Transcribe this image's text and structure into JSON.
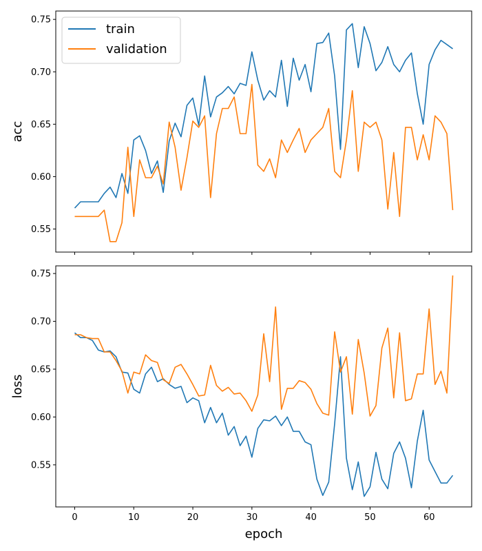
{
  "chart_data": [
    {
      "type": "line",
      "ylabel": "acc",
      "ylim": [
        0.528,
        0.758
      ],
      "yticks": [
        0.55,
        0.6,
        0.65,
        0.7,
        0.75
      ],
      "ytick_labels": [
        "0.55",
        "0.60",
        "0.65",
        "0.70",
        "0.75"
      ],
      "legend": {
        "position": "top-left"
      },
      "series": [
        {
          "name": "train",
          "color": "#1f77b4",
          "values": [
            0.57,
            0.576,
            0.576,
            0.576,
            0.576,
            0.584,
            0.59,
            0.58,
            0.603,
            0.584,
            0.635,
            0.639,
            0.625,
            0.603,
            0.615,
            0.585,
            0.634,
            0.651,
            0.638,
            0.668,
            0.675,
            0.649,
            0.696,
            0.657,
            0.676,
            0.68,
            0.686,
            0.679,
            0.689,
            0.687,
            0.719,
            0.692,
            0.673,
            0.682,
            0.676,
            0.711,
            0.667,
            0.713,
            0.692,
            0.707,
            0.681,
            0.727,
            0.728,
            0.737,
            0.696,
            0.626,
            0.74,
            0.746,
            0.704,
            0.743,
            0.727,
            0.701,
            0.709,
            0.724,
            0.707,
            0.7,
            0.711,
            0.718,
            0.679,
            0.65,
            0.707,
            0.721,
            0.73,
            0.726,
            0.722
          ]
        },
        {
          "name": "validation",
          "color": "#ff7f0e",
          "values": [
            0.562,
            0.562,
            0.562,
            0.562,
            0.562,
            0.568,
            0.538,
            0.538,
            0.556,
            0.628,
            0.562,
            0.616,
            0.599,
            0.599,
            0.61,
            0.593,
            0.652,
            0.628,
            0.587,
            0.618,
            0.653,
            0.647,
            0.658,
            0.58,
            0.641,
            0.665,
            0.665,
            0.676,
            0.641,
            0.641,
            0.688,
            0.611,
            0.605,
            0.617,
            0.599,
            0.635,
            0.623,
            0.635,
            0.646,
            0.623,
            0.635,
            0.641,
            0.647,
            0.665,
            0.605,
            0.599,
            0.635,
            0.682,
            0.605,
            0.652,
            0.647,
            0.652,
            0.635,
            0.569,
            0.623,
            0.562,
            0.647,
            0.647,
            0.616,
            0.64,
            0.616,
            0.658,
            0.652,
            0.641,
            0.568
          ]
        }
      ]
    },
    {
      "type": "line",
      "ylabel": "loss",
      "xlabel": "epoch",
      "ylim": [
        0.506,
        0.758
      ],
      "yticks": [
        0.55,
        0.6,
        0.65,
        0.7,
        0.75
      ],
      "ytick_labels": [
        "0.55",
        "0.60",
        "0.65",
        "0.70",
        "0.75"
      ],
      "xlim": [
        -3.2,
        67.2
      ],
      "xticks": [
        0,
        10,
        20,
        30,
        40,
        50,
        60
      ],
      "xtick_labels": [
        "0",
        "10",
        "20",
        "30",
        "40",
        "50",
        "60"
      ],
      "series": [
        {
          "name": "train",
          "color": "#1f77b4",
          "values": [
            0.688,
            0.683,
            0.683,
            0.68,
            0.67,
            0.668,
            0.669,
            0.663,
            0.647,
            0.646,
            0.629,
            0.625,
            0.645,
            0.652,
            0.637,
            0.64,
            0.634,
            0.63,
            0.632,
            0.615,
            0.62,
            0.617,
            0.594,
            0.61,
            0.594,
            0.604,
            0.581,
            0.59,
            0.57,
            0.58,
            0.558,
            0.588,
            0.597,
            0.596,
            0.601,
            0.591,
            0.6,
            0.585,
            0.585,
            0.574,
            0.571,
            0.535,
            0.518,
            0.532,
            0.593,
            0.663,
            0.557,
            0.524,
            0.553,
            0.517,
            0.527,
            0.563,
            0.535,
            0.525,
            0.562,
            0.574,
            0.557,
            0.526,
            0.575,
            0.607,
            0.555,
            0.543,
            0.531,
            0.531,
            0.539
          ]
        },
        {
          "name": "validation",
          "color": "#ff7f0e",
          "values": [
            0.686,
            0.686,
            0.683,
            0.682,
            0.682,
            0.668,
            0.668,
            0.659,
            0.648,
            0.625,
            0.647,
            0.645,
            0.665,
            0.659,
            0.657,
            0.639,
            0.635,
            0.652,
            0.655,
            0.645,
            0.634,
            0.622,
            0.623,
            0.654,
            0.633,
            0.627,
            0.631,
            0.624,
            0.625,
            0.617,
            0.606,
            0.623,
            0.687,
            0.637,
            0.715,
            0.608,
            0.63,
            0.63,
            0.638,
            0.636,
            0.629,
            0.614,
            0.604,
            0.602,
            0.689,
            0.647,
            0.663,
            0.603,
            0.681,
            0.646,
            0.601,
            0.612,
            0.672,
            0.693,
            0.62,
            0.688,
            0.617,
            0.619,
            0.645,
            0.645,
            0.713,
            0.634,
            0.648,
            0.625,
            0.748
          ]
        }
      ]
    }
  ]
}
